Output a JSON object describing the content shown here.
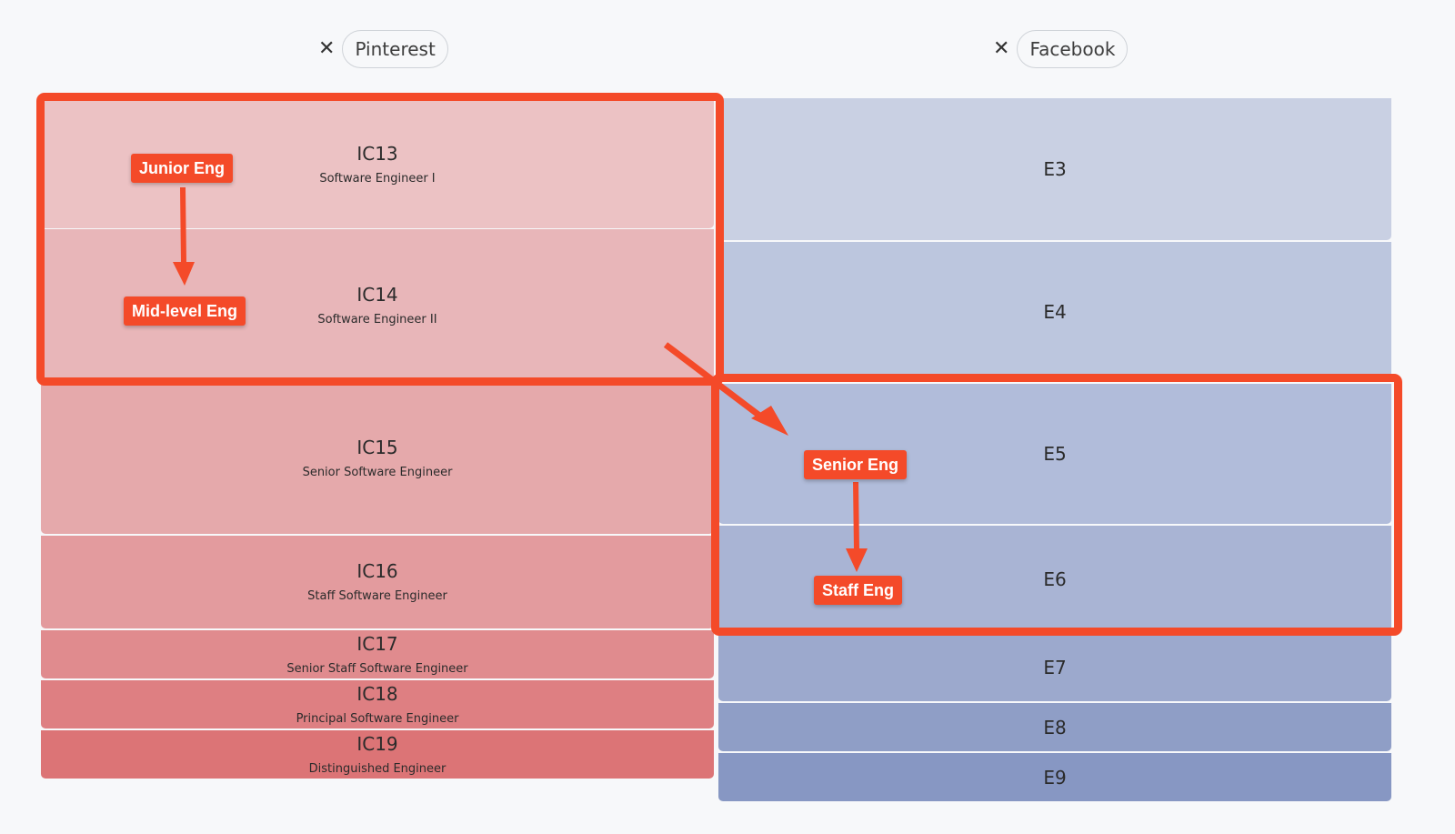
{
  "columns": {
    "left": {
      "company": "Pinterest",
      "levels": [
        {
          "code": "IC13",
          "title": "Software Engineer I"
        },
        {
          "code": "IC14",
          "title": "Software Engineer II"
        },
        {
          "code": "IC15",
          "title": "Senior Software Engineer"
        },
        {
          "code": "IC16",
          "title": "Staff Software Engineer"
        },
        {
          "code": "IC17",
          "title": "Senior Staff Software Engineer"
        },
        {
          "code": "IC18",
          "title": "Principal Software Engineer"
        },
        {
          "code": "IC19",
          "title": "Distinguished Engineer"
        }
      ]
    },
    "right": {
      "company": "Facebook",
      "levels": [
        {
          "code": "E3"
        },
        {
          "code": "E4"
        },
        {
          "code": "E5"
        },
        {
          "code": "E6"
        },
        {
          "code": "E7"
        },
        {
          "code": "E8"
        },
        {
          "code": "E9"
        }
      ]
    }
  },
  "annotations": {
    "tags": {
      "junior": "Junior Eng",
      "mid": "Mid-level Eng",
      "senior": "Senior Eng",
      "staff": "Staff Eng"
    }
  },
  "icons": {
    "remove": "close-icon"
  },
  "colors": {
    "accent": "#f44a29",
    "pinterest_levels": [
      "#ecc2c4",
      "#e8b6b9",
      "#e5a9ab",
      "#e39b9e",
      "#e08b8e",
      "#de7f82",
      "#dc7476"
    ],
    "facebook_levels": [
      "#c9d0e3",
      "#bcc6de",
      "#b1bcda",
      "#a9b4d4",
      "#9ca9cd",
      "#8f9ec6",
      "#8797c3"
    ]
  }
}
